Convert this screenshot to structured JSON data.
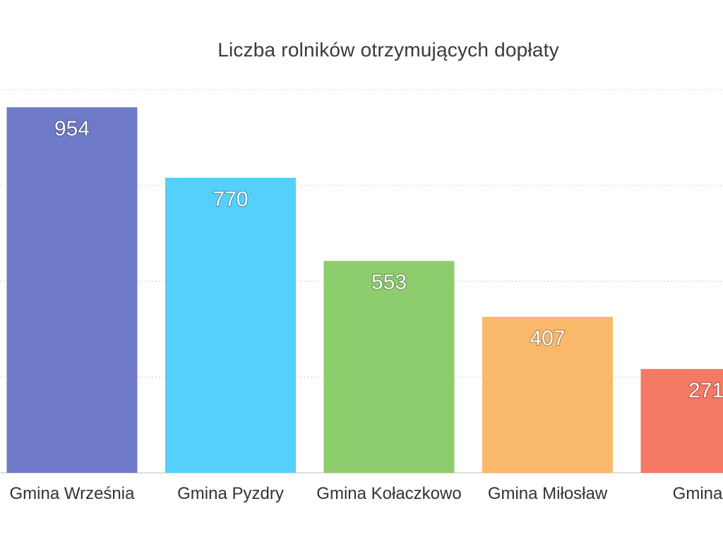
{
  "chart_data": {
    "type": "bar",
    "title": "Liczba rolników otrzymujących dopłaty",
    "categories": [
      "Gmina Września",
      "Gmina Pyzdry",
      "Gmina Kołaczkowo",
      "Gmina Miłosław",
      "Gmina N"
    ],
    "values": [
      954,
      770,
      553,
      407,
      271
    ],
    "value_labels": [
      "954",
      "770",
      "553",
      "407",
      "271"
    ],
    "colors": [
      "#6f7bc8",
      "#55d0fb",
      "#8ecd6e",
      "#f9b86a",
      "#f47a63"
    ],
    "ylim": [
      0,
      1000
    ],
    "grid": true,
    "legend": "none"
  }
}
